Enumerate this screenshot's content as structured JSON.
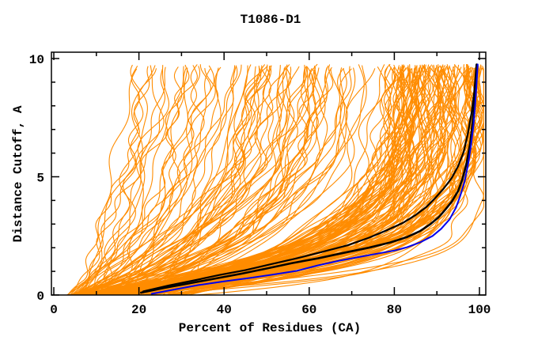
{
  "figure": {
    "background": "#FFFFFF",
    "frame_color": "#000000"
  },
  "chart_data": {
    "type": "line",
    "title": "T1086-D1",
    "xlabel": "Percent of Residues (CA)",
    "ylabel": "Distance Cutoff, A",
    "xlim": [
      0,
      100
    ],
    "ylim": [
      0,
      10
    ],
    "grid": false,
    "legend": null,
    "x_major_ticks": [
      0,
      20,
      40,
      60,
      80,
      100
    ],
    "x_minor_ticks": [
      10,
      30,
      50,
      70,
      90
    ],
    "x_tick_labels": [
      "0",
      "20",
      "40",
      "60",
      "80",
      "100"
    ],
    "y_major_ticks": [
      0,
      5,
      10
    ],
    "y_minor_ticks": [
      1,
      2,
      3,
      4,
      6,
      7,
      8,
      9
    ],
    "y_tick_labels": [
      "0",
      "5",
      "10"
    ],
    "series": [
      {
        "name": "model-highlight-black-1",
        "color": "#000000",
        "width": 2.6,
        "points": [
          [
            20.5,
            0.1
          ],
          [
            26,
            0.3
          ],
          [
            32,
            0.5
          ],
          [
            38,
            0.7
          ],
          [
            44,
            0.9
          ],
          [
            50,
            1.12
          ],
          [
            56,
            1.35
          ],
          [
            62,
            1.55
          ],
          [
            68,
            1.78
          ],
          [
            74,
            2.0
          ],
          [
            79,
            2.22
          ],
          [
            83,
            2.45
          ],
          [
            86,
            2.7
          ],
          [
            88.5,
            3.0
          ],
          [
            90.5,
            3.3
          ],
          [
            92,
            3.62
          ],
          [
            93.5,
            3.95
          ],
          [
            95,
            4.4
          ],
          [
            96,
            4.9
          ],
          [
            97,
            5.6
          ],
          [
            97.8,
            6.4
          ],
          [
            98.4,
            7.3
          ],
          [
            98.9,
            8.2
          ],
          [
            99.2,
            9.0
          ],
          [
            99.4,
            9.75
          ]
        ]
      },
      {
        "name": "model-highlight-black-2",
        "color": "#000000",
        "width": 2.2,
        "points": [
          [
            21,
            0.15
          ],
          [
            27,
            0.4
          ],
          [
            33,
            0.62
          ],
          [
            39,
            0.85
          ],
          [
            45,
            1.05
          ],
          [
            51,
            1.3
          ],
          [
            57,
            1.55
          ],
          [
            63,
            1.82
          ],
          [
            69,
            2.1
          ],
          [
            74,
            2.42
          ],
          [
            78,
            2.72
          ],
          [
            82,
            3.05
          ],
          [
            85,
            3.38
          ],
          [
            87.5,
            3.72
          ],
          [
            89.5,
            4.08
          ],
          [
            91.5,
            4.48
          ],
          [
            93.5,
            4.95
          ],
          [
            95,
            5.45
          ],
          [
            96.3,
            6.05
          ],
          [
            97.3,
            6.85
          ],
          [
            98.2,
            7.75
          ],
          [
            98.8,
            8.6
          ],
          [
            99.1,
            9.3
          ],
          [
            99.3,
            9.75
          ]
        ]
      },
      {
        "name": "model-highlight-blue",
        "color": "#0000EE",
        "width": 2.0,
        "points": [
          [
            23,
            0.05
          ],
          [
            28,
            0.22
          ],
          [
            34,
            0.42
          ],
          [
            40,
            0.58
          ],
          [
            46,
            0.72
          ],
          [
            52,
            0.88
          ],
          [
            57,
            1.02
          ],
          [
            62,
            1.25
          ],
          [
            67,
            1.45
          ],
          [
            72,
            1.62
          ],
          [
            76,
            1.75
          ],
          [
            80,
            1.88
          ],
          [
            83,
            2.02
          ],
          [
            86,
            2.22
          ],
          [
            89,
            2.5
          ],
          [
            91,
            2.8
          ],
          [
            93,
            3.2
          ],
          [
            94.5,
            3.7
          ],
          [
            95.5,
            4.2
          ],
          [
            96.5,
            4.8
          ],
          [
            97.3,
            5.5
          ],
          [
            98,
            6.3
          ],
          [
            98.6,
            7.2
          ],
          [
            99,
            8.05
          ],
          [
            99.3,
            8.85
          ],
          [
            99.6,
            9.75
          ]
        ]
      }
    ],
    "background_ensemble": {
      "label": "server-prediction-curves",
      "color": "#FF8C00",
      "count": 200,
      "seed": 987654321,
      "width": 1.1,
      "cutoff_top": 9.75
    }
  }
}
